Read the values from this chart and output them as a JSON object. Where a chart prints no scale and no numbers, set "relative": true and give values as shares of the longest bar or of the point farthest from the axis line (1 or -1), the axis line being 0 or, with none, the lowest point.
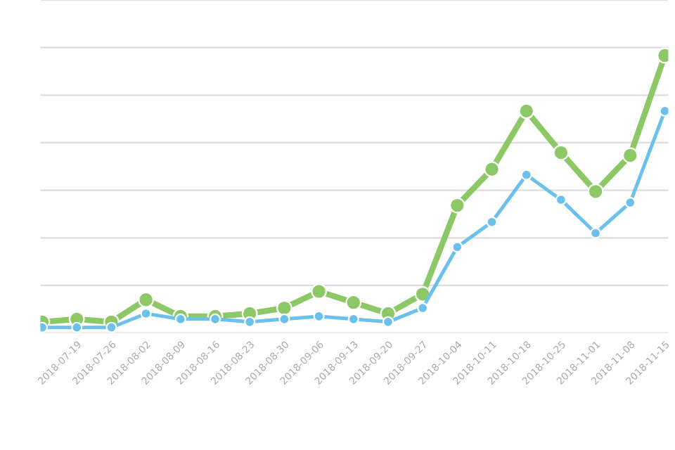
{
  "chart_data": {
    "type": "line",
    "relative": true,
    "grid": "y",
    "marker": "circle",
    "line_style": "solid",
    "categories": [
      null,
      "2018-07-19",
      "2018-07-26",
      "2018-08-02",
      "2018-08-09",
      "2018-08-16",
      "2018-08-23",
      "2018-08-30",
      "2018-09-06",
      "2018-09-13",
      "2018-09-20",
      "2018-09-27",
      "2018-10-04",
      "2018-10-11",
      "2018-10-18",
      "2018-10-25",
      "2018-11-01",
      "2018-11-08",
      "2018-11-15"
    ],
    "series": [
      {
        "color": "#8cc866",
        "values": [
          0.04,
          0.05,
          0.04,
          0.12,
          0.06,
          0.06,
          0.07,
          0.09,
          0.15,
          0.11,
          0.07,
          0.14,
          0.46,
          0.59,
          0.8,
          0.65,
          0.51,
          0.64,
          1.0
        ]
      },
      {
        "color": "#6cc0ec",
        "values": [
          0.02,
          0.02,
          0.02,
          0.07,
          0.05,
          0.05,
          0.04,
          0.05,
          0.06,
          0.05,
          0.04,
          0.09,
          0.31,
          0.4,
          0.57,
          0.48,
          0.36,
          0.47,
          0.8
        ]
      }
    ]
  }
}
